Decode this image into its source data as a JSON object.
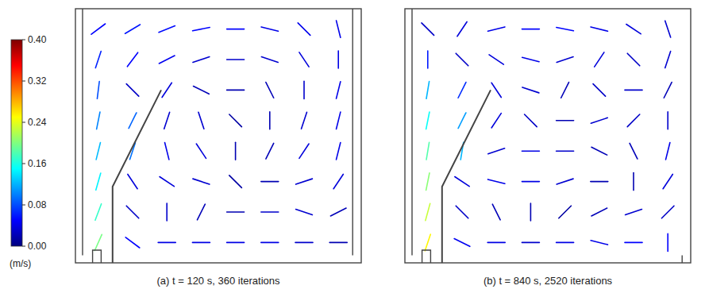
{
  "colorbar": {
    "label": "(m/s)",
    "range": [
      0,
      0.4
    ],
    "ticks": [
      {
        "value": 0,
        "label": "0.00"
      },
      0.08,
      0.16,
      0.24,
      0.32,
      {
        "value": 0.4,
        "label": "0.40"
      }
    ]
  },
  "chart_data": [
    {
      "type": "quiver",
      "title": "(a) t = 120 s, 360 iterations",
      "tick_labels": false,
      "xlim": [
        0,
        1
      ],
      "ylim": [
        0,
        1
      ],
      "x": [
        0.08,
        0.2,
        0.32,
        0.44,
        0.56,
        0.68,
        0.8,
        0.92
      ],
      "y": [
        0.92,
        0.8,
        0.68,
        0.56,
        0.44,
        0.32,
        0.2,
        0.08
      ],
      "u": [
        [
          0.04,
          0.05,
          0.05,
          0.05,
          0.05,
          0.04,
          0.03,
          0.01
        ],
        [
          0.02,
          0.03,
          0.04,
          0.03,
          0.03,
          0.03,
          0.02,
          0.0
        ],
        [
          0.01,
          -0.02,
          0.02,
          0.02,
          0.02,
          0.01,
          0.0,
          -0.01
        ],
        [
          0.02,
          0.04,
          -0.01,
          0.01,
          0.01,
          0.0,
          -0.01,
          -0.01
        ],
        [
          0.03,
          0.03,
          0.01,
          0.02,
          0.0,
          -0.01,
          -0.02,
          -0.01
        ],
        [
          0.04,
          0.02,
          0.03,
          0.03,
          0.01,
          -0.02,
          -0.03,
          -0.02
        ],
        [
          0.06,
          -0.02,
          0.0,
          -0.01,
          -0.02,
          -0.03,
          -0.03,
          -0.02
        ],
        [
          0.08,
          -0.04,
          -0.04,
          -0.04,
          -0.04,
          -0.04,
          -0.03,
          -0.02
        ]
      ],
      "v": [
        [
          0.03,
          0.03,
          0.02,
          0.01,
          0.0,
          -0.01,
          -0.03,
          -0.04
        ],
        [
          0.06,
          0.04,
          0.02,
          0.01,
          0.0,
          -0.01,
          -0.03,
          -0.04
        ],
        [
          0.08,
          0.02,
          0.03,
          -0.01,
          0.0,
          -0.02,
          -0.03,
          -0.04
        ],
        [
          0.1,
          0.08,
          -0.03,
          -0.03,
          -0.01,
          -0.02,
          -0.03,
          -0.04
        ],
        [
          0.12,
          0.09,
          -0.04,
          -0.03,
          -0.02,
          -0.02,
          -0.03,
          -0.04
        ],
        [
          0.14,
          -0.03,
          -0.02,
          -0.01,
          -0.01,
          0.0,
          -0.01,
          -0.03
        ],
        [
          0.16,
          0.02,
          -0.03,
          -0.02,
          0.0,
          0.0,
          0.01,
          -0.01
        ],
        [
          0.18,
          0.03,
          0.0,
          0.0,
          0.0,
          0.0,
          0.0,
          0.0
        ]
      ]
    },
    {
      "type": "quiver",
      "title": "(b) t = 840 s, 2520 iterations",
      "tick_labels": false,
      "xlim": [
        0,
        1
      ],
      "ylim": [
        0,
        1
      ],
      "x": [
        0.08,
        0.2,
        0.32,
        0.44,
        0.56,
        0.68,
        0.8,
        0.92
      ],
      "y": [
        0.92,
        0.8,
        0.68,
        0.56,
        0.44,
        0.32,
        0.2,
        0.08
      ],
      "u": [
        [
          -0.02,
          0.02,
          0.04,
          0.05,
          0.05,
          0.04,
          0.03,
          0.01
        ],
        [
          0.0,
          -0.02,
          0.03,
          0.04,
          0.03,
          0.02,
          -0.02,
          -0.01
        ],
        [
          0.02,
          0.03,
          0.02,
          0.03,
          0.01,
          -0.02,
          -0.03,
          -0.01
        ],
        [
          0.03,
          0.05,
          -0.02,
          0.02,
          -0.02,
          -0.03,
          -0.02,
          0.0
        ],
        [
          0.03,
          0.02,
          0.03,
          0.04,
          0.03,
          0.02,
          0.01,
          -0.01
        ],
        [
          0.04,
          0.03,
          0.04,
          0.04,
          0.03,
          0.02,
          0.0,
          -0.02
        ],
        [
          0.06,
          -0.02,
          0.01,
          0.0,
          -0.01,
          -0.02,
          -0.03,
          -0.02
        ],
        [
          0.08,
          -0.04,
          -0.04,
          -0.03,
          -0.04,
          -0.04,
          -0.05,
          0.0
        ]
      ],
      "v": [
        [
          0.02,
          0.03,
          0.01,
          0.0,
          -0.01,
          -0.01,
          -0.02,
          -0.03
        ],
        [
          0.06,
          0.02,
          -0.02,
          -0.01,
          0.01,
          0.03,
          0.02,
          -0.03
        ],
        [
          0.12,
          0.06,
          -0.03,
          -0.01,
          0.02,
          0.02,
          0.0,
          -0.02
        ],
        [
          0.15,
          0.1,
          -0.03,
          -0.02,
          0.0,
          -0.01,
          -0.02,
          -0.03
        ],
        [
          0.18,
          0.12,
          0.01,
          0.0,
          0.0,
          -0.01,
          -0.02,
          -0.04
        ],
        [
          0.2,
          -0.02,
          -0.01,
          0.0,
          0.01,
          0.0,
          -0.02,
          -0.03
        ],
        [
          0.22,
          0.02,
          -0.02,
          -0.02,
          -0.01,
          -0.01,
          -0.01,
          -0.02
        ],
        [
          0.24,
          0.02,
          0.0,
          0.0,
          0.0,
          0.01,
          0.0,
          0.05
        ]
      ]
    }
  ]
}
